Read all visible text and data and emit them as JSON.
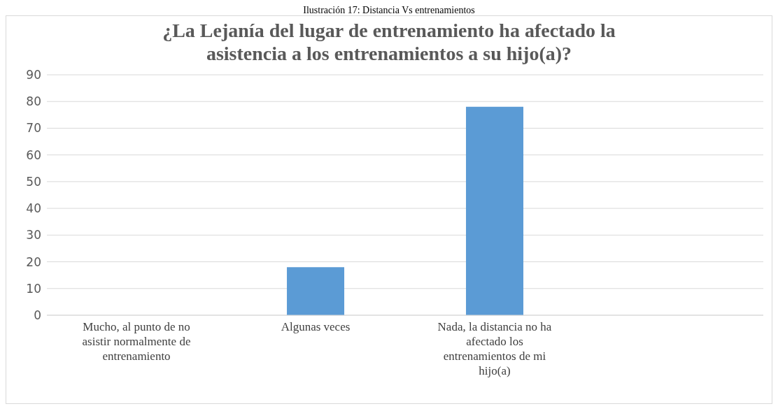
{
  "chart_data": {
    "type": "bar",
    "title": "¿La Lejanía del lugar de entrenamiento ha afectado la asistencia a los entrenamientos a su hijo(a)?",
    "annotations": [
      "Ilustración 17: Distancia Vs entrenamientos"
    ],
    "categories": [
      "Mucho, al punto de no asistir normalmente de entrenamiento",
      "Algunas veces",
      "Nada, la distancia no ha afectado los entrenamientos de mi hijo(a)",
      null
    ],
    "values": [
      0,
      18,
      78,
      null
    ],
    "color": "#5b9bd5",
    "ylim": [
      0,
      90
    ],
    "yticks": [
      0,
      10,
      20,
      30,
      40,
      50,
      60,
      70,
      80,
      90
    ],
    "grid": "y",
    "legend": false
  }
}
